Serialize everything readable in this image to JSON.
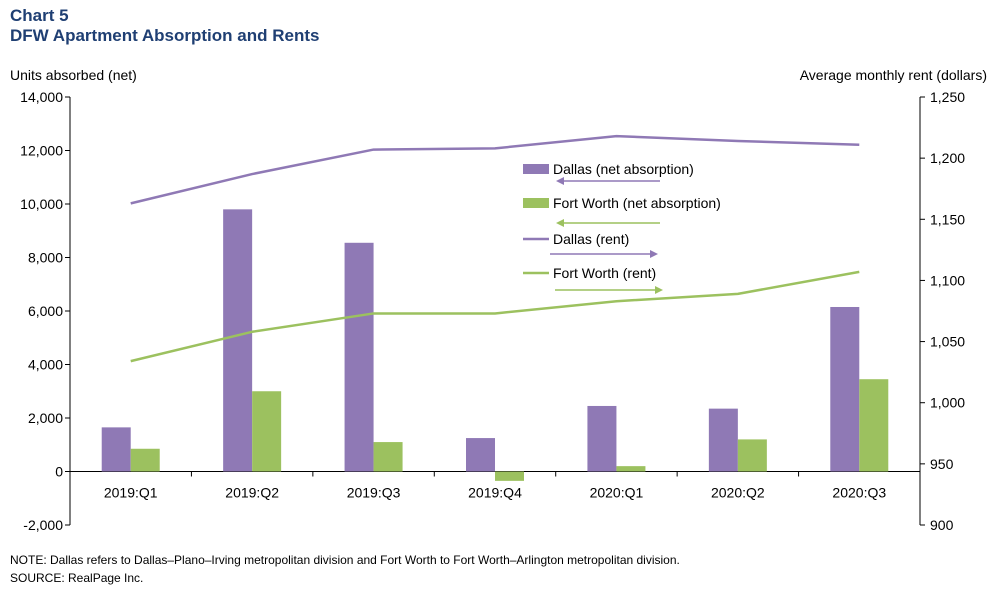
{
  "title": {
    "line1": "Chart 5",
    "line2": "DFW Apartment Absorption and Rents"
  },
  "notes": {
    "note": "NOTE: Dallas refers to Dallas–Plano–Irving  metropolitan division and Fort Worth to Fort Worth–Arlington metropolitan division.",
    "source": "SOURCE: RealPage Inc."
  },
  "colors": {
    "dallas": "#8f79b5",
    "fortworth": "#9cc15f",
    "axis": "#000000",
    "title": "#1f3f73"
  },
  "chart_data": {
    "type": "bar+line",
    "title": "DFW Apartment Absorption and Rents",
    "ylabel_left": "Units absorbed (net)",
    "ylabel_right": "Average monthly  rent (dollars)",
    "categories": [
      "2019:Q1",
      "2019:Q2",
      "2019:Q3",
      "2019:Q4",
      "2020:Q1",
      "2020:Q2",
      "2020:Q3"
    ],
    "ylim_left": [
      -2000,
      14000
    ],
    "yticks_left": [
      "-2,000",
      "0",
      "2,000",
      "4,000",
      "6,000",
      "8,000",
      "10,000",
      "12,000",
      "14,000"
    ],
    "ylim_right": [
      900,
      1250
    ],
    "yticks_right": [
      "900",
      "950",
      "1,000",
      "1,050",
      "1,100",
      "1,150",
      "1,200",
      "1,250"
    ],
    "grid": false,
    "legend_position": "center-right",
    "bar_series": [
      {
        "name": "Dallas (net absorption)",
        "axis": "left",
        "values": [
          1650,
          9800,
          8550,
          1250,
          2450,
          2350,
          6150
        ]
      },
      {
        "name": "Fort Worth (net absorption)",
        "axis": "left",
        "values": [
          850,
          3000,
          1100,
          -350,
          200,
          1200,
          3450
        ]
      }
    ],
    "line_series": [
      {
        "name": "Dallas (rent)",
        "axis": "right",
        "values": [
          1163,
          1187,
          1207,
          1208,
          1218,
          1214,
          1211
        ]
      },
      {
        "name": "Fort Worth (rent)",
        "axis": "right",
        "values": [
          1034,
          1058,
          1073,
          1073,
          1083,
          1089,
          1107
        ]
      }
    ]
  }
}
